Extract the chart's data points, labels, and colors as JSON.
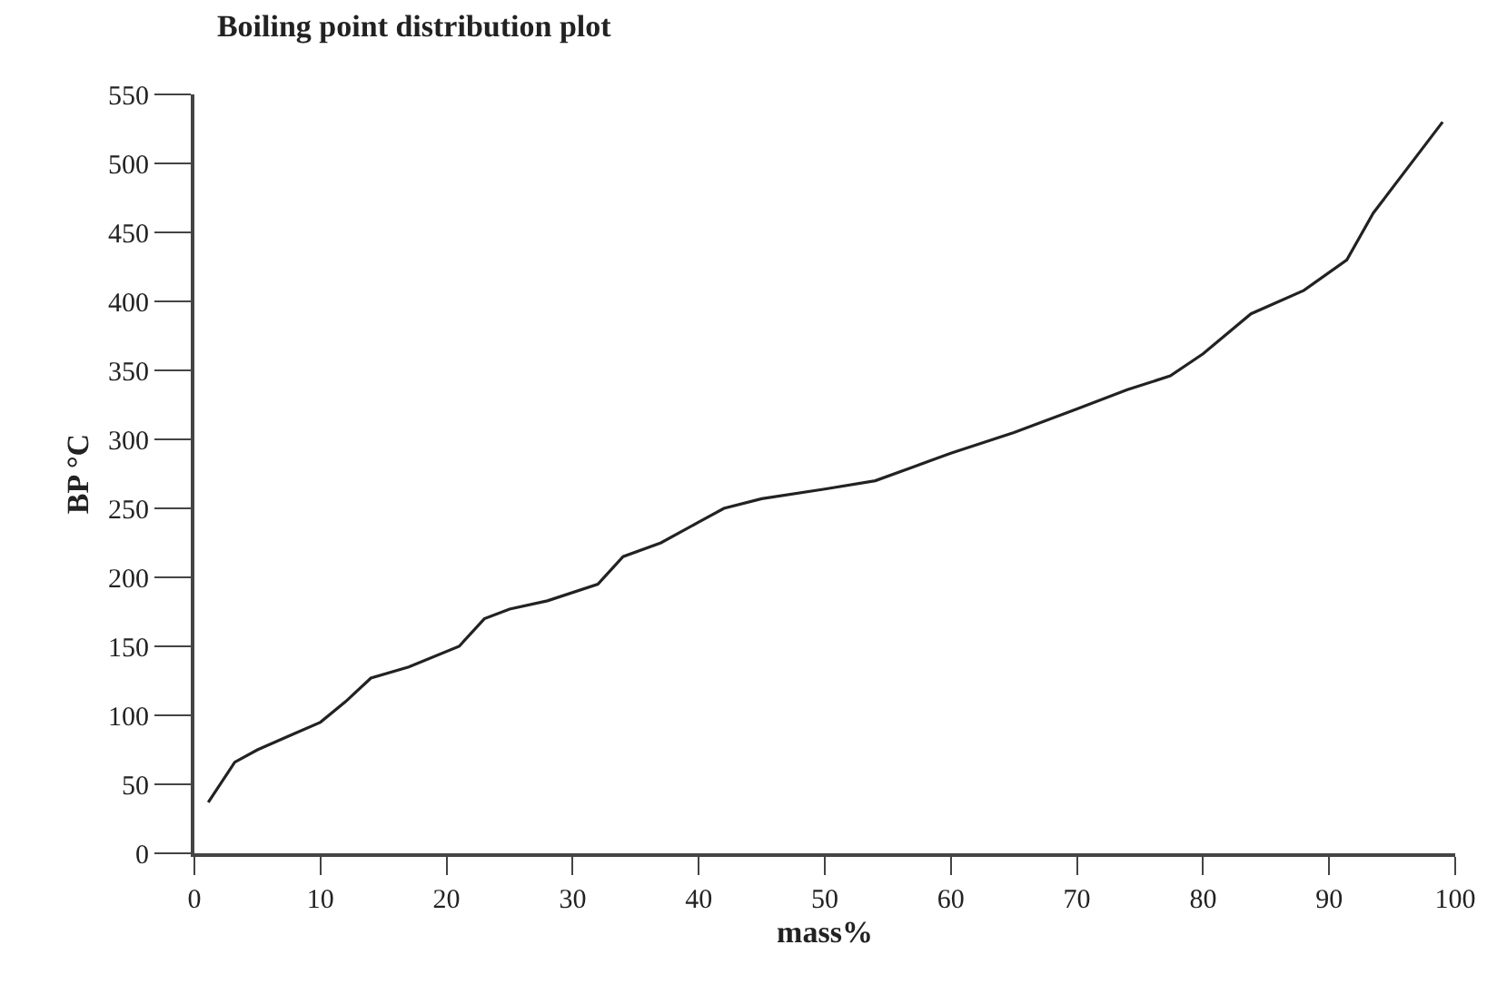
{
  "chart_data": {
    "type": "line",
    "title": "Boiling point distribution plot",
    "xlabel": "mass%",
    "ylabel": "BP °C",
    "x": [
      1.1,
      3.2,
      5,
      7.5,
      10,
      12,
      14,
      17,
      21,
      23,
      25,
      28,
      32,
      34,
      37,
      40,
      42,
      45,
      50,
      54,
      57,
      60,
      65,
      70,
      74,
      77.4,
      80,
      83.8,
      88,
      91.4,
      93.5,
      99
    ],
    "series": [
      {
        "color": "#222222",
        "values": [
          37,
          66,
          75,
          85,
          95,
          110,
          127,
          135,
          150,
          170,
          177,
          183,
          195,
          215,
          225,
          240,
          250,
          257,
          264,
          270,
          280,
          290,
          305,
          322,
          336,
          346,
          362,
          391,
          408,
          430,
          464,
          530
        ]
      }
    ],
    "xlim": [
      0,
      100
    ],
    "xticks": [
      0,
      10,
      20,
      30,
      40,
      50,
      60,
      70,
      80,
      90,
      100
    ],
    "ylim": [
      0,
      550
    ],
    "yticks": [
      0,
      50,
      100,
      150,
      200,
      250,
      300,
      350,
      400,
      450,
      500,
      550
    ],
    "marker": "none",
    "line_style": "solid"
  }
}
